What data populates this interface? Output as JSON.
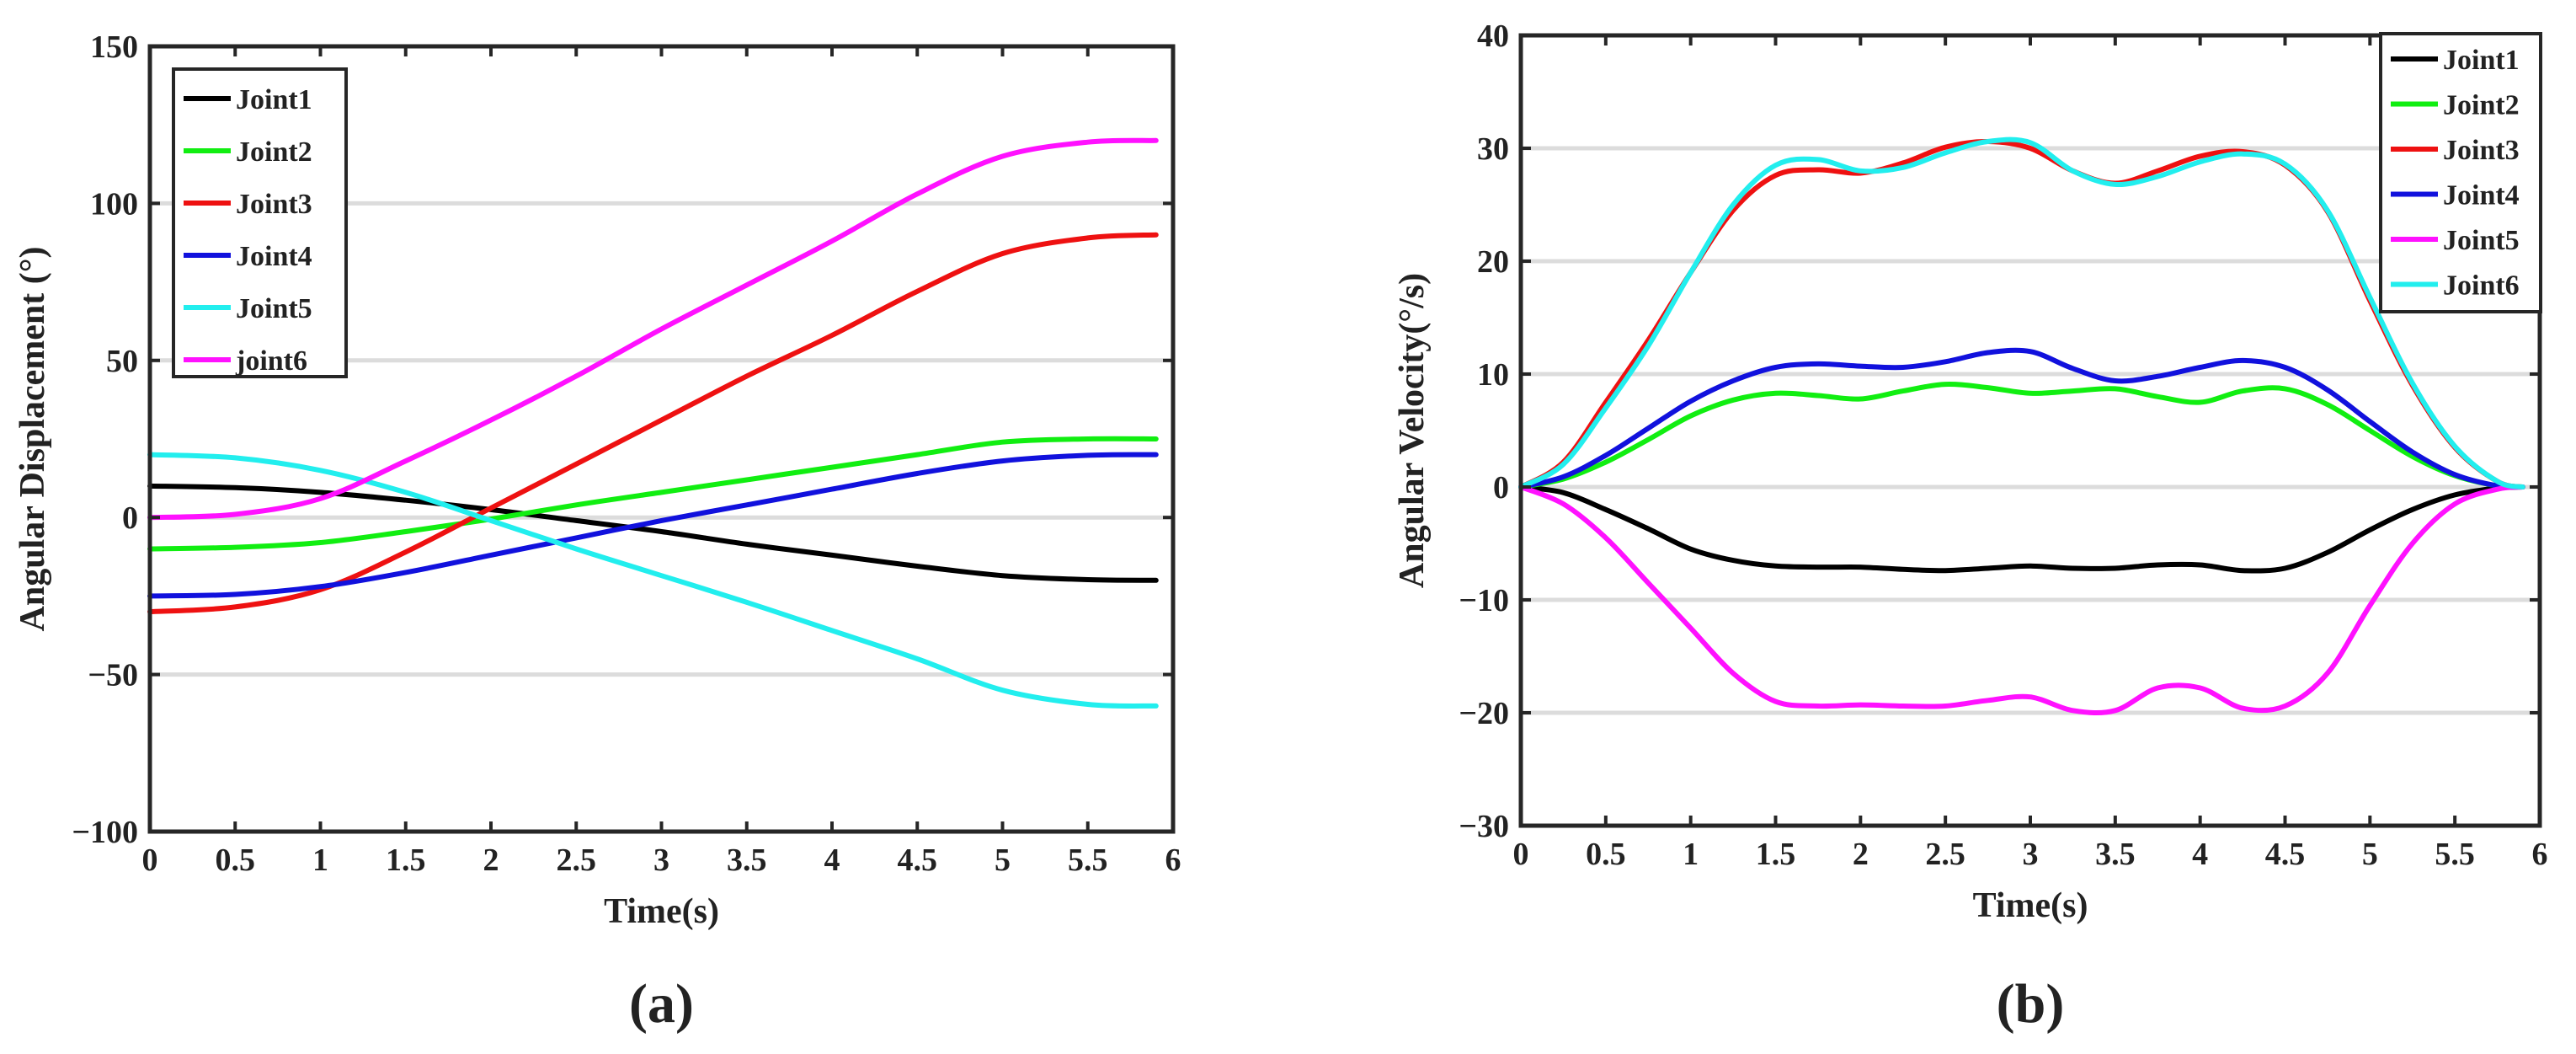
{
  "chart_data": [
    {
      "panel_label": "(a)",
      "type": "line",
      "title": "",
      "xlabel": "Time(s)",
      "ylabel": "Angular Displacement (°)",
      "xlim": [
        0,
        6
      ],
      "ylim": [
        -100,
        150
      ],
      "xticks": [
        0,
        0.5,
        1,
        1.5,
        2,
        2.5,
        3,
        3.5,
        4,
        4.5,
        5,
        5.5,
        6
      ],
      "xtick_labels": [
        "0",
        "0.5",
        "1",
        "1.5",
        "2",
        "2.5",
        "3",
        "3.5",
        "4",
        "4.5",
        "5",
        "5.5",
        "6"
      ],
      "yticks": [
        -100,
        -50,
        0,
        50,
        100,
        150
      ],
      "ytick_labels": [
        "−100",
        "−50",
        "0",
        "50",
        "100",
        "150"
      ],
      "grid": "horizontal",
      "legend_position": "top-left",
      "series": [
        {
          "name": "Joint1",
          "color": "#000000",
          "x": [
            0,
            0.5,
            1,
            1.5,
            2,
            2.5,
            3,
            3.5,
            4,
            4.5,
            5,
            5.5,
            5.9
          ],
          "values": [
            10,
            9.5,
            8,
            5.5,
            2.5,
            -1,
            -4.5,
            -8.5,
            -12,
            -15.5,
            -18.5,
            -19.8,
            -20
          ]
        },
        {
          "name": "Joint2",
          "color": "#11ee11",
          "x": [
            0,
            0.5,
            1,
            1.5,
            2,
            2.5,
            3,
            3.5,
            4,
            4.5,
            5,
            5.5,
            5.9
          ],
          "values": [
            -10,
            -9.5,
            -8,
            -4.5,
            -0.5,
            4,
            8,
            12,
            16,
            20,
            24,
            25,
            25
          ]
        },
        {
          "name": "Joint3",
          "color": "#ee1111",
          "x": [
            0,
            0.5,
            1,
            1.5,
            2,
            2.5,
            3,
            3.5,
            4,
            4.5,
            5,
            5.5,
            5.9
          ],
          "values": [
            -30,
            -28.5,
            -23,
            -11,
            3,
            17,
            31,
            45,
            58,
            72,
            84,
            89,
            90
          ]
        },
        {
          "name": "Joint4",
          "color": "#1111dd",
          "x": [
            0,
            0.5,
            1,
            1.5,
            2,
            2.5,
            3,
            3.5,
            4,
            4.5,
            5,
            5.5,
            5.9
          ],
          "values": [
            -25,
            -24.5,
            -22,
            -17.5,
            -12,
            -6.5,
            -1,
            4,
            9,
            14,
            18,
            19.8,
            20
          ]
        },
        {
          "name": "Joint5",
          "color": "#22eeee",
          "x": [
            0,
            0.5,
            1,
            1.5,
            2,
            2.5,
            3,
            3.5,
            4,
            4.5,
            5,
            5.5,
            5.9
          ],
          "values": [
            20,
            19,
            15,
            8,
            -1,
            -10,
            -18.5,
            -27,
            -36,
            -45,
            -55,
            -59.5,
            -60
          ]
        },
        {
          "name": "joint6",
          "color": "#ff11ff",
          "x": [
            0,
            0.5,
            1,
            1.5,
            2,
            2.5,
            3,
            3.5,
            4,
            4.5,
            5,
            5.5,
            5.9
          ],
          "values": [
            0,
            1,
            6,
            18,
            31,
            45,
            60,
            74,
            88,
            103,
            115,
            119.5,
            120
          ]
        }
      ]
    },
    {
      "panel_label": "(b)",
      "type": "line",
      "title": "",
      "xlabel": "Time(s)",
      "ylabel": "Angular Velocity(°/s)",
      "xlim": [
        0,
        6
      ],
      "ylim": [
        -30,
        40
      ],
      "xticks": [
        0,
        0.5,
        1,
        1.5,
        2,
        2.5,
        3,
        3.5,
        4,
        4.5,
        5,
        5.5,
        6
      ],
      "xtick_labels": [
        "0",
        "0.5",
        "1",
        "1.5",
        "2",
        "2.5",
        "3",
        "3.5",
        "4",
        "4.5",
        "5",
        "5.5",
        "6"
      ],
      "yticks": [
        -30,
        -20,
        -10,
        0,
        10,
        20,
        30,
        40
      ],
      "ytick_labels": [
        "−30",
        "−20",
        "−10",
        "0",
        "10",
        "20",
        "30",
        "40"
      ],
      "grid": "horizontal",
      "legend_position": "top-right",
      "series": [
        {
          "name": "Joint1",
          "color": "#000000",
          "x": [
            0,
            0.25,
            0.5,
            0.75,
            1,
            1.25,
            1.5,
            1.75,
            2,
            2.25,
            2.5,
            2.75,
            3,
            3.25,
            3.5,
            3.75,
            4,
            4.25,
            4.5,
            4.75,
            5,
            5.25,
            5.5,
            5.75,
            5.9
          ],
          "values": [
            0,
            -0.5,
            -2,
            -3.7,
            -5.5,
            -6.5,
            -7,
            -7.1,
            -7.1,
            -7.3,
            -7.4,
            -7.2,
            -7,
            -7.2,
            -7.2,
            -6.9,
            -6.9,
            -7.4,
            -7.2,
            -5.8,
            -3.8,
            -2,
            -0.7,
            -0.1,
            0
          ]
        },
        {
          "name": "Joint2",
          "color": "#11ee11",
          "x": [
            0,
            0.25,
            0.5,
            0.75,
            1,
            1.25,
            1.5,
            1.75,
            2,
            2.25,
            2.5,
            2.75,
            3,
            3.25,
            3.5,
            3.75,
            4,
            4.25,
            4.5,
            4.75,
            5,
            5.25,
            5.5,
            5.75,
            5.9
          ],
          "values": [
            0,
            0.7,
            2.2,
            4.2,
            6.3,
            7.7,
            8.3,
            8.1,
            7.8,
            8.5,
            9.1,
            8.8,
            8.3,
            8.5,
            8.7,
            8,
            7.5,
            8.5,
            8.7,
            7.3,
            5,
            2.7,
            1,
            0.1,
            0
          ]
        },
        {
          "name": "Joint3",
          "color": "#ee1111",
          "x": [
            0,
            0.25,
            0.5,
            0.75,
            1,
            1.25,
            1.5,
            1.75,
            2,
            2.25,
            2.5,
            2.75,
            3,
            3.25,
            3.5,
            3.75,
            4,
            4.25,
            4.5,
            4.75,
            5,
            5.25,
            5.5,
            5.75,
            5.9
          ],
          "values": [
            0,
            2.2,
            7.5,
            13,
            19,
            24.5,
            27.6,
            28.1,
            27.8,
            28.7,
            30.1,
            30.6,
            30,
            28,
            26.9,
            28,
            29.3,
            29.7,
            28.5,
            24.4,
            16.5,
            9,
            3.5,
            0.5,
            0
          ]
        },
        {
          "name": "Joint4",
          "color": "#1111dd",
          "x": [
            0,
            0.25,
            0.5,
            0.75,
            1,
            1.25,
            1.5,
            1.75,
            2,
            2.25,
            2.5,
            2.75,
            3,
            3.25,
            3.5,
            3.75,
            4,
            4.25,
            4.5,
            4.75,
            5,
            5.25,
            5.5,
            5.75,
            5.9
          ],
          "values": [
            0,
            0.9,
            2.8,
            5.2,
            7.6,
            9.4,
            10.6,
            10.9,
            10.7,
            10.6,
            11.1,
            11.9,
            12,
            10.5,
            9.4,
            9.8,
            10.6,
            11.2,
            10.6,
            8.6,
            5.8,
            3.1,
            1.1,
            0.1,
            0
          ]
        },
        {
          "name": "Joint5",
          "color": "#ff11ff",
          "x": [
            0,
            0.25,
            0.5,
            0.75,
            1,
            1.25,
            1.5,
            1.75,
            2,
            2.25,
            2.5,
            2.75,
            3,
            3.25,
            3.5,
            3.75,
            4,
            4.25,
            4.5,
            4.75,
            5,
            5.25,
            5.5,
            5.75,
            5.9
          ],
          "values": [
            0,
            -1.5,
            -4.5,
            -8.5,
            -12.5,
            -16.5,
            -19,
            -19.4,
            -19.3,
            -19.4,
            -19.4,
            -18.9,
            -18.6,
            -19.8,
            -19.8,
            -17.8,
            -17.8,
            -19.6,
            -19.4,
            -16.5,
            -10.5,
            -5,
            -1.5,
            -0.2,
            0
          ]
        },
        {
          "name": "Joint6",
          "color": "#22eeee",
          "x": [
            0,
            0.25,
            0.5,
            0.75,
            1,
            1.25,
            1.5,
            1.75,
            2,
            2.25,
            2.5,
            2.75,
            3,
            3.25,
            3.5,
            3.75,
            4,
            4.25,
            4.5,
            4.75,
            5,
            5.25,
            5.5,
            5.75,
            5.9
          ],
          "values": [
            0,
            2,
            7,
            12.5,
            19,
            25,
            28.5,
            29,
            28,
            28.3,
            29.6,
            30.6,
            30.5,
            28,
            26.8,
            27.5,
            28.8,
            29.5,
            28.6,
            24.5,
            16.8,
            9.2,
            3.6,
            0.5,
            0
          ]
        }
      ]
    }
  ]
}
